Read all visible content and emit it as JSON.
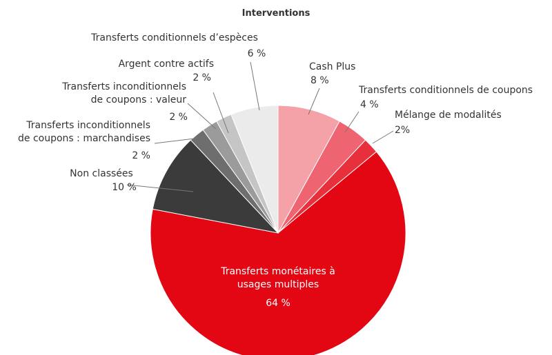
{
  "chart_data": {
    "type": "pie",
    "title": "Interventions",
    "categories": [
      "Cash Plus",
      "Transferts conditionnels de coupons",
      "Mélange de modalités",
      "Transferts monétaires à\nusages multiples",
      "Non classées",
      "Transferts inconditionnels\nde coupons : marchandises",
      "Transferts inconditionnels\nde coupons : valeur",
      "Argent contre actifs",
      "Transferts conditionnels d’espèces"
    ],
    "values": [
      8,
      4,
      2,
      64,
      10,
      2,
      2,
      2,
      6
    ],
    "value_labels": [
      "8 %",
      "4  %",
      "2%",
      "64 %",
      "10 %",
      "2 %",
      "2 %",
      "2 %",
      "6 %"
    ],
    "colors": [
      "#f4a1a7",
      "#ef6471",
      "#e8303d",
      "#e30613",
      "#3b3b3b",
      "#6e6e6e",
      "#9b9b9b",
      "#c5c5c5",
      "#ebebeb"
    ]
  }
}
